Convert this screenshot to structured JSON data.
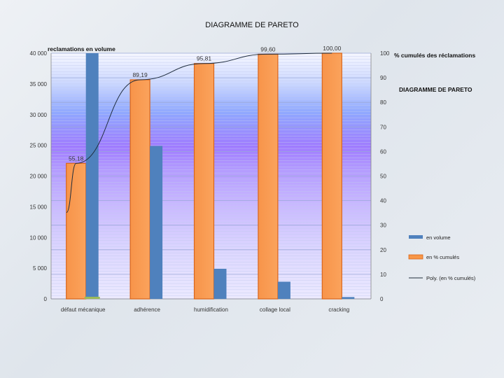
{
  "slide_title": "DIAGRAMME DE PARETO",
  "chart_data": {
    "type": "bar",
    "title": "DIAGRAMME DE PARETO",
    "categories": [
      "défaut mécanique",
      "adhérence",
      "humidification",
      "collage local",
      "cracking"
    ],
    "series": [
      {
        "name": "en volume",
        "axis": "left",
        "color": "#4f81bd",
        "values": [
          40000,
          24900,
          4900,
          2800,
          300
        ]
      },
      {
        "name": "en % cumulés",
        "axis": "right",
        "color": "#f79646",
        "values": [
          55.18,
          89.19,
          95.81,
          99.6,
          100.0
        ],
        "labels": [
          "55,18",
          "89,19",
          "95,81",
          "99,60",
          "100,00"
        ]
      },
      {
        "name": "Poly. (en % cumulés)",
        "type": "line",
        "axis": "right",
        "color": "#1f2d3d"
      }
    ],
    "extra_bar": {
      "category": "défaut mécanique",
      "value": 350,
      "color": "#9bbb59"
    },
    "left_axis": {
      "title": "reclamations en volume",
      "ylim": [
        0,
        40000
      ],
      "ticks": [
        0,
        5000,
        10000,
        15000,
        20000,
        25000,
        30000,
        35000,
        40000
      ],
      "tick_labels": [
        "0",
        "5 000",
        "10 000",
        "15 000",
        "20 000",
        "25 000",
        "30 000",
        "35 000",
        "40 000"
      ]
    },
    "right_axis": {
      "title": "% cumulés des réclamations",
      "ylim": [
        0,
        100
      ],
      "ticks": [
        0,
        10,
        20,
        30,
        40,
        50,
        60,
        70,
        80,
        90,
        100
      ],
      "tick_labels": [
        "0",
        "10",
        "20",
        "30",
        "40",
        "50",
        "60",
        "70",
        "80",
        "90",
        "100"
      ]
    },
    "inner_title": "DIAGRAMME DE PARETO",
    "legend": [
      "en volume",
      "en % cumulés",
      "Poly. (en % cumulés)"
    ]
  }
}
